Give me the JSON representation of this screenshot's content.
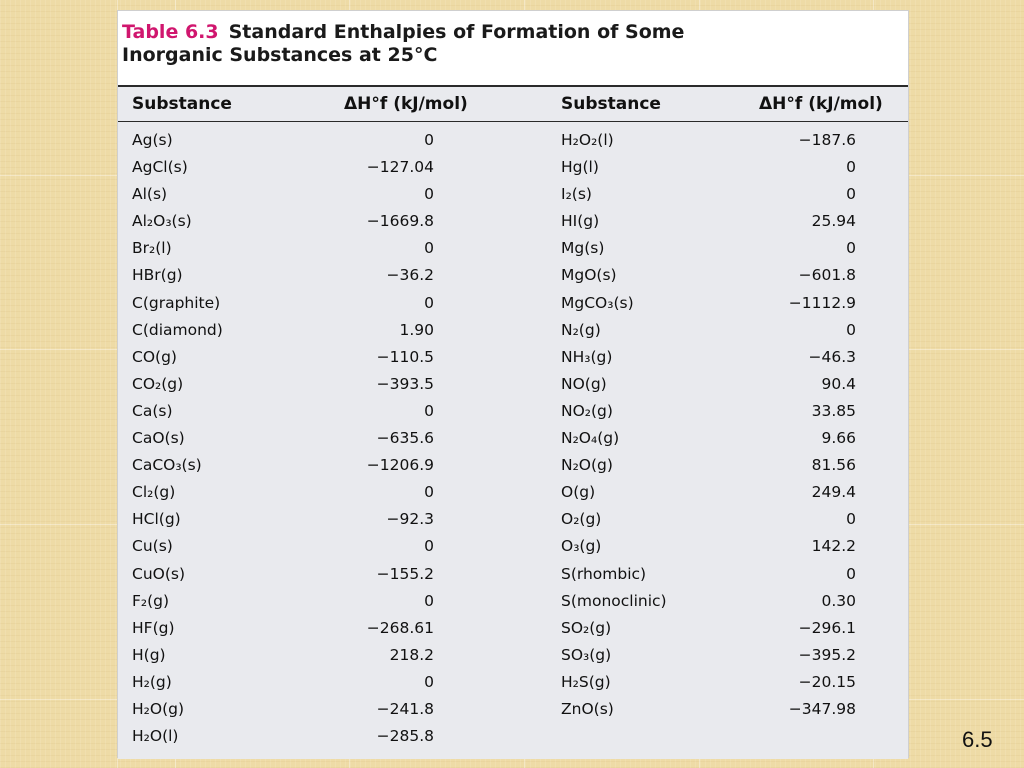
{
  "caption": {
    "number": "Table 6.3",
    "title_line1": "Standard Enthalpies of Formation of Some",
    "title_line2": "Inorganic Substances at 25°C"
  },
  "header": {
    "substance": "Substance",
    "dh": "ΔH°f  (kJ/mol)"
  },
  "rows": [
    {
      "left_substance": "Ag(s)",
      "left_value": "0",
      "right_substance": "H₂O₂(l)",
      "right_value": "−187.6"
    },
    {
      "left_substance": "AgCl(s)",
      "left_value": "−127.04",
      "right_substance": "Hg(l)",
      "right_value": "0"
    },
    {
      "left_substance": "Al(s)",
      "left_value": "0",
      "right_substance": "I₂(s)",
      "right_value": "0"
    },
    {
      "left_substance": "Al₂O₃(s)",
      "left_value": "−1669.8",
      "right_substance": "HI(g)",
      "right_value": "25.94"
    },
    {
      "left_substance": "Br₂(l)",
      "left_value": "0",
      "right_substance": "Mg(s)",
      "right_value": "0"
    },
    {
      "left_substance": "HBr(g)",
      "left_value": "−36.2",
      "right_substance": "MgO(s)",
      "right_value": "−601.8"
    },
    {
      "left_substance": "C(graphite)",
      "left_value": "0",
      "right_substance": "MgCO₃(s)",
      "right_value": "−1112.9"
    },
    {
      "left_substance": "C(diamond)",
      "left_value": "1.90",
      "right_substance": "N₂(g)",
      "right_value": "0"
    },
    {
      "left_substance": "CO(g)",
      "left_value": "−110.5",
      "right_substance": "NH₃(g)",
      "right_value": "−46.3"
    },
    {
      "left_substance": "CO₂(g)",
      "left_value": "−393.5",
      "right_substance": "NO(g)",
      "right_value": "90.4"
    },
    {
      "left_substance": "Ca(s)",
      "left_value": "0",
      "right_substance": "NO₂(g)",
      "right_value": "33.85"
    },
    {
      "left_substance": "CaO(s)",
      "left_value": "−635.6",
      "right_substance": "N₂O₄(g)",
      "right_value": "9.66"
    },
    {
      "left_substance": "CaCO₃(s)",
      "left_value": "−1206.9",
      "right_substance": "N₂O(g)",
      "right_value": "81.56"
    },
    {
      "left_substance": "Cl₂(g)",
      "left_value": "0",
      "right_substance": "O(g)",
      "right_value": "249.4"
    },
    {
      "left_substance": "HCl(g)",
      "left_value": "−92.3",
      "right_substance": "O₂(g)",
      "right_value": "0"
    },
    {
      "left_substance": "Cu(s)",
      "left_value": "0",
      "right_substance": "O₃(g)",
      "right_value": "142.2"
    },
    {
      "left_substance": "CuO(s)",
      "left_value": "−155.2",
      "right_substance": "S(rhombic)",
      "right_value": "0"
    },
    {
      "left_substance": "F₂(g)",
      "left_value": "0",
      "right_substance": "S(monoclinic)",
      "right_value": "0.30"
    },
    {
      "left_substance": "HF(g)",
      "left_value": "−268.61",
      "right_substance": "SO₂(g)",
      "right_value": "−296.1"
    },
    {
      "left_substance": "H(g)",
      "left_value": "218.2",
      "right_substance": "SO₃(g)",
      "right_value": "−395.2"
    },
    {
      "left_substance": "H₂(g)",
      "left_value": "0",
      "right_substance": "H₂S(g)",
      "right_value": "−20.15"
    },
    {
      "left_substance": "H₂O(g)",
      "left_value": "−241.8",
      "right_substance": "ZnO(s)",
      "right_value": "−347.98"
    },
    {
      "left_substance": "H₂O(l)",
      "left_value": "−285.8",
      "right_substance": "",
      "right_value": ""
    }
  ],
  "slide_number": "6.5"
}
